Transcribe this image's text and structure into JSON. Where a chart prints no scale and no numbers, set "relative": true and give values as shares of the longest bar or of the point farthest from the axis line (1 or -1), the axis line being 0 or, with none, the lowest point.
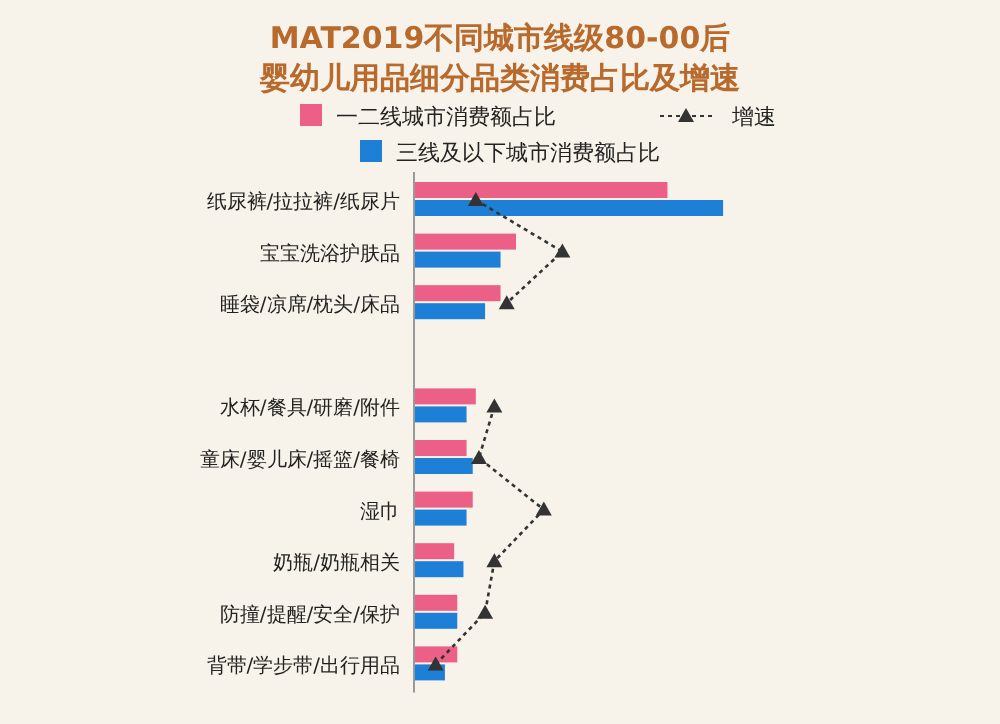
{
  "chart_data": {
    "type": "bar",
    "orientation": "horizontal",
    "relative": true,
    "title": "MAT2019不同城市线级80-00后",
    "subtitle": "婴幼儿用品细分品类消费占比及增速",
    "categories": [
      "纸尿裤/拉拉裤/纸尿片",
      "宝宝洗浴护肤品",
      "睡袋/凉席/枕头/床品",
      null,
      "水杯/餐具/研磨/附件",
      "童床/婴儿床/摇篮/餐椅",
      "湿巾",
      "奶瓶/奶瓶相关",
      "防撞/提醒/安全/保护",
      "背带/学步带/出行用品"
    ],
    "series": [
      {
        "name": "一二线城市消费额占比",
        "color": "#ec5f86",
        "values": [
          0.82,
          0.33,
          0.28,
          null,
          0.2,
          0.17,
          0.19,
          0.13,
          0.14,
          0.14
        ]
      },
      {
        "name": "三线及以下城市消费额占比",
        "color": "#1e7fd6",
        "values": [
          1,
          0.28,
          0.23,
          null,
          0.17,
          0.19,
          0.17,
          0.16,
          0.14,
          0.1
        ]
      },
      {
        "name": "增速",
        "type": "line",
        "color": "#333333",
        "marker": "triangle",
        "line_style": "dotted",
        "values": [
          0.2,
          0.48,
          0.3,
          null,
          0.26,
          0.21,
          0.42,
          0.26,
          0.23,
          0.07
        ]
      }
    ],
    "legend": "top"
  }
}
